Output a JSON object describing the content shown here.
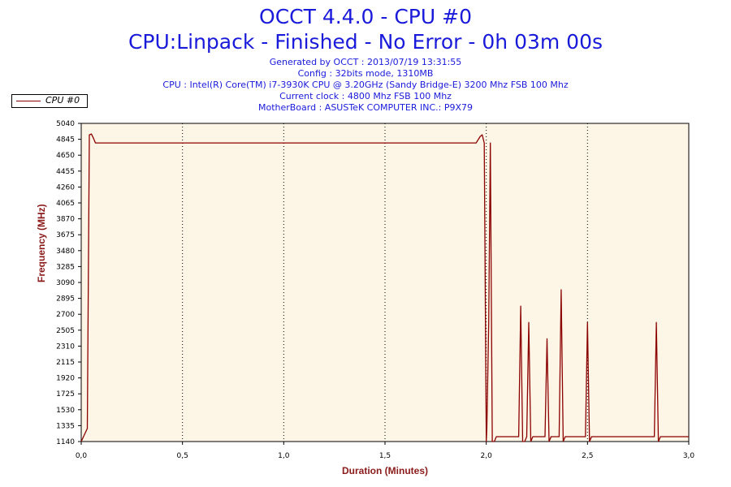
{
  "title_line1": "OCCT 4.4.0 - CPU #0",
  "title_line2": "CPU:Linpack - Finished - No Error - 0h 03m 00s",
  "info": {
    "generated": "Generated by OCCT : 2013/07/19 13:31:55",
    "config": "Config : 32bits mode, 1310MB",
    "cpu": "CPU : Intel(R) Core(TM) i7-3930K CPU @ 3.20GHz (Sandy Bridge-E) 3200 Mhz FSB 100 Mhz",
    "clock": "Current clock : 4800 Mhz FSB 100 Mhz",
    "motherboard": "MotherBoard : ASUSTeK COMPUTER INC.: P9X79"
  },
  "colors": {
    "line": "#8b0000",
    "plot_bg": "#fdf5e6",
    "title": "#1a1adb",
    "axis_label": "#8b1a1a"
  },
  "chart_data": {
    "type": "line",
    "xlabel": "Duration (Minutes)",
    "ylabel": "Frequency (MHz)",
    "xlim": [
      0.0,
      3.0
    ],
    "ylim": [
      1140,
      5040
    ],
    "x_ticks": [
      "0,0",
      "0,5",
      "1,0",
      "1,5",
      "2,0",
      "2,5",
      "3,0"
    ],
    "y_ticks": [
      "1140",
      "1335",
      "1530",
      "1725",
      "1920",
      "2115",
      "2310",
      "2505",
      "2700",
      "2895",
      "3090",
      "3285",
      "3480",
      "3675",
      "3870",
      "4065",
      "4260",
      "4455",
      "4650",
      "4845",
      "5040"
    ],
    "grid": "vertical dotted",
    "legend": "top-left",
    "series": [
      {
        "name": "CPU #0",
        "points": [
          [
            0.0,
            1140
          ],
          [
            0.03,
            1300
          ],
          [
            0.04,
            4900
          ],
          [
            0.05,
            4910
          ],
          [
            0.06,
            4860
          ],
          [
            0.07,
            4800
          ],
          [
            0.5,
            4800
          ],
          [
            1.0,
            4800
          ],
          [
            1.5,
            4800
          ],
          [
            1.95,
            4800
          ],
          [
            1.97,
            4880
          ],
          [
            1.98,
            4900
          ],
          [
            1.99,
            4800
          ],
          [
            2.0,
            1140
          ],
          [
            2.003,
            1300
          ],
          [
            2.012,
            2600
          ],
          [
            2.02,
            4800
          ],
          [
            2.03,
            1140
          ],
          [
            2.04,
            1140
          ],
          [
            2.05,
            1200
          ],
          [
            2.16,
            1200
          ],
          [
            2.17,
            2800
          ],
          [
            2.18,
            1140
          ],
          [
            2.19,
            1140
          ],
          [
            2.2,
            1200
          ],
          [
            2.21,
            2600
          ],
          [
            2.22,
            1140
          ],
          [
            2.23,
            1200
          ],
          [
            2.29,
            1200
          ],
          [
            2.3,
            2400
          ],
          [
            2.31,
            1140
          ],
          [
            2.32,
            1200
          ],
          [
            2.36,
            1200
          ],
          [
            2.37,
            3000
          ],
          [
            2.38,
            1140
          ],
          [
            2.39,
            1200
          ],
          [
            2.49,
            1200
          ],
          [
            2.5,
            2600
          ],
          [
            2.51,
            1140
          ],
          [
            2.52,
            1200
          ],
          [
            2.83,
            1200
          ],
          [
            2.84,
            2600
          ],
          [
            2.85,
            1140
          ],
          [
            2.86,
            1200
          ],
          [
            3.0,
            1200
          ]
        ]
      }
    ]
  }
}
